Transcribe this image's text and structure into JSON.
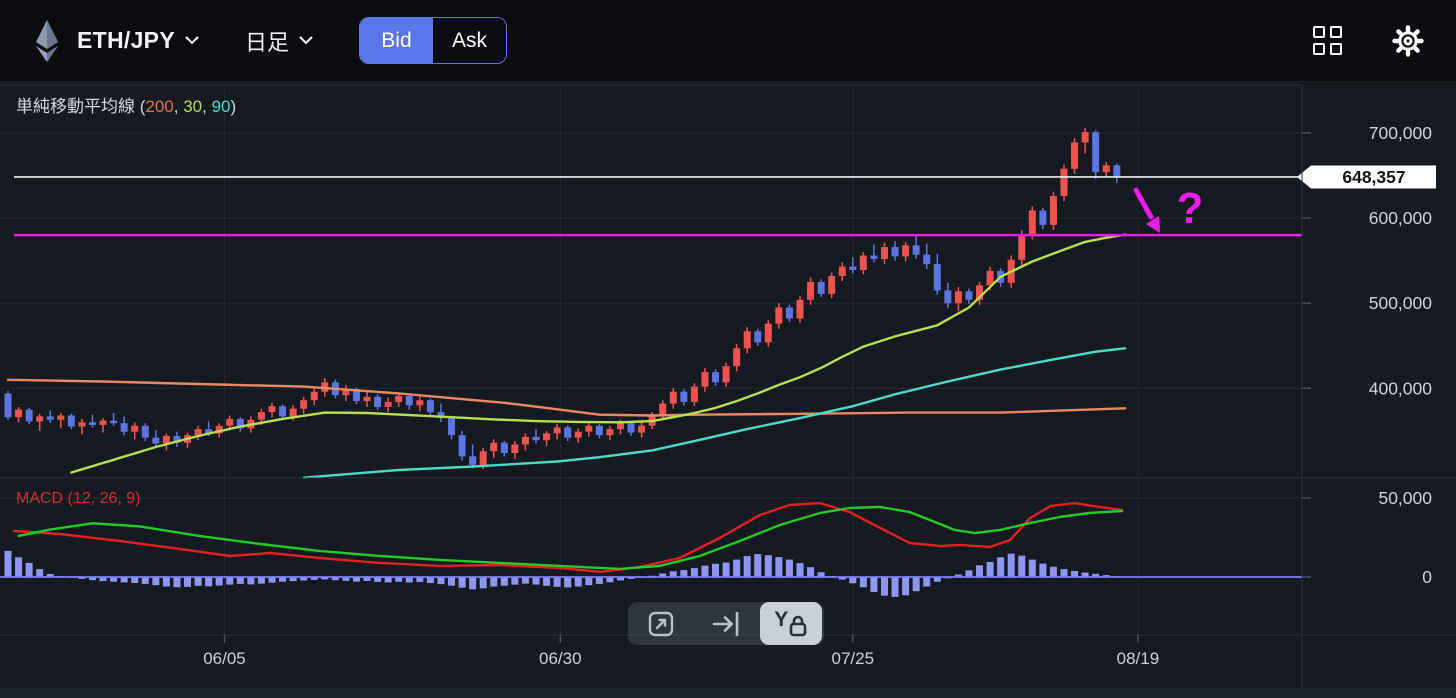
{
  "header": {
    "symbol": "ETH/JPY",
    "timeframe": "日足",
    "bid_label": "Bid",
    "ask_label": "Ask",
    "selected_side": "Bid"
  },
  "indicator": {
    "prefix": "単純移動平均線 (",
    "separator": ", ",
    "suffix": ")",
    "params": [
      {
        "value": "200",
        "color": "#e0734f"
      },
      {
        "value": "30",
        "color": "#b8de51"
      },
      {
        "value": "90",
        "color": "#4ed9c6"
      }
    ]
  },
  "macd_label": "MACD (12, 26, 9)",
  "price_tag": "648,357",
  "annotation": {
    "text": "?",
    "color": "#ea1dea"
  },
  "toolbar": {
    "buttons": [
      "expand",
      "go-to-latest",
      "y-axis-lock"
    ],
    "active": "y-axis-lock",
    "y_lock_letter": "Y"
  },
  "chart_data": {
    "type": "candlestick",
    "symbol": "ETH/JPY",
    "interval": "daily",
    "current_price": 648357,
    "level_line": {
      "price": 580000,
      "color": "#ea1dea"
    },
    "y_axis": {
      "ticks": [
        700000,
        600000,
        500000,
        400000
      ],
      "labels": [
        "700,000",
        "600,000",
        "500,000",
        "400,000"
      ]
    },
    "x_axis": {
      "ticks": [
        {
          "label": "06/05",
          "i": 20.5
        },
        {
          "label": "06/30",
          "i": 52.3
        },
        {
          "label": "07/25",
          "i": 80.0
        },
        {
          "label": "08/19",
          "i": 107.0
        }
      ]
    },
    "colors": {
      "up": "#ef5350",
      "down": "#5e74e0",
      "sma200": "#e88a63",
      "sma30": "#b8de51",
      "sma90": "#4ed9c6",
      "macd_line": "#e02222",
      "signal_line": "#26c926",
      "histogram": "#8f96f2",
      "zero_line": "#7d82f5",
      "level": "#ea1dea",
      "price_line": "#eceef2"
    },
    "candles": [
      [
        394000,
        397000,
        363000,
        366000
      ],
      [
        366000,
        378000,
        360000,
        375000
      ],
      [
        375000,
        377000,
        358000,
        361000
      ],
      [
        361000,
        370000,
        350000,
        367000
      ],
      [
        367000,
        374000,
        359000,
        363000
      ],
      [
        363000,
        371000,
        353000,
        368000
      ],
      [
        368000,
        370000,
        352000,
        355000
      ],
      [
        355000,
        364000,
        346000,
        360000
      ],
      [
        360000,
        369000,
        354000,
        357000
      ],
      [
        357000,
        365000,
        348000,
        362000
      ],
      [
        362000,
        371000,
        356000,
        359000
      ],
      [
        359000,
        367000,
        345000,
        349000
      ],
      [
        349000,
        360000,
        340000,
        356000
      ],
      [
        356000,
        359000,
        338000,
        342000
      ],
      [
        342000,
        351000,
        330000,
        335000
      ],
      [
        335000,
        347000,
        327000,
        344000
      ],
      [
        344000,
        349000,
        331000,
        336000
      ],
      [
        336000,
        348000,
        330000,
        345000
      ],
      [
        345000,
        356000,
        339000,
        352000
      ],
      [
        352000,
        361000,
        344000,
        347000
      ],
      [
        347000,
        359000,
        342000,
        356000
      ],
      [
        356000,
        368000,
        351000,
        364000
      ],
      [
        364000,
        366000,
        349000,
        353000
      ],
      [
        353000,
        367000,
        348000,
        363000
      ],
      [
        363000,
        376000,
        357000,
        372000
      ],
      [
        372000,
        383000,
        366000,
        379000
      ],
      [
        379000,
        381000,
        363000,
        367000
      ],
      [
        367000,
        380000,
        362000,
        376000
      ],
      [
        376000,
        390000,
        370000,
        386000
      ],
      [
        386000,
        400000,
        380000,
        396000
      ],
      [
        396000,
        412000,
        390000,
        407000
      ],
      [
        407000,
        410000,
        388000,
        392000
      ],
      [
        392000,
        404000,
        385000,
        399000
      ],
      [
        399000,
        401000,
        381000,
        385000
      ],
      [
        385000,
        396000,
        378000,
        390000
      ],
      [
        390000,
        393000,
        374000,
        378000
      ],
      [
        378000,
        389000,
        372000,
        384000
      ],
      [
        384000,
        395000,
        378000,
        391000
      ],
      [
        391000,
        393000,
        375000,
        380000
      ],
      [
        380000,
        390000,
        373000,
        386000
      ],
      [
        386000,
        388000,
        368000,
        372000
      ],
      [
        372000,
        382000,
        360000,
        365000
      ],
      [
        365000,
        368000,
        340000,
        345000
      ],
      [
        345000,
        350000,
        315000,
        320000
      ],
      [
        320000,
        334000,
        306000,
        310000
      ],
      [
        310000,
        330000,
        305000,
        326000
      ],
      [
        326000,
        340000,
        318000,
        336000
      ],
      [
        336000,
        338000,
        320000,
        324000
      ],
      [
        324000,
        338000,
        317000,
        334000
      ],
      [
        334000,
        347000,
        327000,
        343000
      ],
      [
        343000,
        352000,
        335000,
        339000
      ],
      [
        339000,
        350000,
        332000,
        347000
      ],
      [
        347000,
        358000,
        340000,
        354000
      ],
      [
        354000,
        356000,
        338000,
        342000
      ],
      [
        342000,
        353000,
        336000,
        349000
      ],
      [
        349000,
        360000,
        343000,
        356000
      ],
      [
        356000,
        358000,
        341000,
        345000
      ],
      [
        345000,
        356000,
        339000,
        352000
      ],
      [
        352000,
        363000,
        346000,
        359000
      ],
      [
        359000,
        361000,
        344000,
        348000
      ],
      [
        348000,
        360000,
        342000,
        356000
      ],
      [
        356000,
        372000,
        352000,
        368000
      ],
      [
        368000,
        386000,
        362000,
        382000
      ],
      [
        382000,
        400000,
        376000,
        396000
      ],
      [
        396000,
        399000,
        380000,
        384000
      ],
      [
        384000,
        406000,
        379000,
        402000
      ],
      [
        402000,
        424000,
        396000,
        419000
      ],
      [
        419000,
        422000,
        403000,
        407000
      ],
      [
        407000,
        430000,
        402000,
        426000
      ],
      [
        426000,
        452000,
        420000,
        447000
      ],
      [
        447000,
        472000,
        441000,
        467000
      ],
      [
        467000,
        470000,
        450000,
        454000
      ],
      [
        454000,
        480000,
        449000,
        476000
      ],
      [
        476000,
        500000,
        470000,
        495000
      ],
      [
        495000,
        498000,
        478000,
        482000
      ],
      [
        482000,
        508000,
        477000,
        504000
      ],
      [
        504000,
        530000,
        498000,
        525000
      ],
      [
        525000,
        528000,
        507000,
        511000
      ],
      [
        511000,
        536000,
        506000,
        532000
      ],
      [
        532000,
        548000,
        526000,
        543000
      ],
      [
        543000,
        554000,
        535000,
        539000
      ],
      [
        539000,
        560000,
        534000,
        556000
      ],
      [
        556000,
        569000,
        548000,
        552000
      ],
      [
        552000,
        571000,
        546000,
        566000
      ],
      [
        566000,
        573000,
        550000,
        555000
      ],
      [
        555000,
        572000,
        549000,
        568000
      ],
      [
        568000,
        580000,
        552000,
        557000
      ],
      [
        557000,
        570000,
        540000,
        546000
      ],
      [
        546000,
        558000,
        510000,
        515000
      ],
      [
        515000,
        524000,
        494000,
        500000
      ],
      [
        500000,
        519000,
        491000,
        514000
      ],
      [
        514000,
        517000,
        499000,
        504000
      ],
      [
        504000,
        525000,
        498000,
        521000
      ],
      [
        521000,
        543000,
        515000,
        538000
      ],
      [
        538000,
        541000,
        519000,
        524000
      ],
      [
        524000,
        556000,
        518000,
        551000
      ],
      [
        551000,
        586000,
        545000,
        581000
      ],
      [
        581000,
        614000,
        575000,
        609000
      ],
      [
        609000,
        612000,
        587000,
        592000
      ],
      [
        592000,
        631000,
        586000,
        626000
      ],
      [
        626000,
        663000,
        620000,
        658000
      ],
      [
        658000,
        694000,
        652000,
        689000
      ],
      [
        689000,
        706000,
        676000,
        701000
      ],
      [
        701000,
        703000,
        646000,
        654000
      ],
      [
        654000,
        666000,
        648000,
        662000
      ],
      [
        662000,
        664000,
        641000,
        648357
      ]
    ],
    "sma": {
      "200": [
        [
          0,
          410000
        ],
        [
          9,
          408000
        ],
        [
          18,
          405000
        ],
        [
          28,
          402000
        ],
        [
          37,
          394000
        ],
        [
          47,
          383000
        ],
        [
          51,
          377000
        ],
        [
          56,
          369000
        ],
        [
          61,
          368000
        ],
        [
          65,
          369000
        ],
        [
          75,
          370000
        ],
        [
          85,
          371500
        ],
        [
          94,
          371500
        ],
        [
          100,
          374000
        ],
        [
          105.8,
          376500
        ]
      ],
      "30": [
        [
          6,
          301000
        ],
        [
          10,
          316000
        ],
        [
          14,
          331000
        ],
        [
          18,
          344000
        ],
        [
          22,
          355000
        ],
        [
          26,
          364000
        ],
        [
          30,
          371500
        ],
        [
          34,
          371000
        ],
        [
          38,
          368500
        ],
        [
          42,
          366000
        ],
        [
          46,
          363500
        ],
        [
          50,
          361500
        ],
        [
          54,
          360500
        ],
        [
          58,
          360000
        ],
        [
          61,
          361500
        ],
        [
          63,
          366000
        ],
        [
          65,
          371000
        ],
        [
          67,
          377000
        ],
        [
          69,
          385000
        ],
        [
          71,
          394000
        ],
        [
          73,
          404000
        ],
        [
          75,
          413000
        ],
        [
          77,
          424000
        ],
        [
          79,
          437000
        ],
        [
          81,
          449000
        ],
        [
          84,
          461000
        ],
        [
          88,
          474000
        ],
        [
          91,
          495000
        ],
        [
          94,
          531000
        ],
        [
          97,
          549000
        ],
        [
          100,
          563000
        ],
        [
          102,
          572000
        ],
        [
          104,
          577000
        ],
        [
          105.8,
          580500
        ]
      ],
      "90": [
        [
          28,
          295000
        ],
        [
          37,
          304000
        ],
        [
          44,
          308000
        ],
        [
          52,
          314000
        ],
        [
          56,
          319000
        ],
        [
          61,
          327000
        ],
        [
          65,
          338000
        ],
        [
          70,
          352000
        ],
        [
          75,
          365000
        ],
        [
          80,
          379000
        ],
        [
          84,
          393000
        ],
        [
          89,
          408000
        ],
        [
          94,
          422000
        ],
        [
          99,
          434000
        ],
        [
          103,
          443000
        ],
        [
          105.8,
          447000
        ]
      ]
    },
    "macd": {
      "params": "12, 26, 9",
      "y_ticks": [
        50000,
        0
      ],
      "y_tick_labels": [
        "50,000",
        "0"
      ],
      "histogram": [
        16500,
        12500,
        8900,
        5000,
        1900,
        600,
        -500,
        -1200,
        -2000,
        -2600,
        -3000,
        -3400,
        -3800,
        -4400,
        -5200,
        -6000,
        -6500,
        -6200,
        -5600,
        -5900,
        -5400,
        -4800,
        -4400,
        -4700,
        -4200,
        -3600,
        -3000,
        -2600,
        -2200,
        -1800,
        -1500,
        -2000,
        -2400,
        -2900,
        -2500,
        -3100,
        -3400,
        -3000,
        -3500,
        -3200,
        -3800,
        -4500,
        -5500,
        -6800,
        -7800,
        -7200,
        -6000,
        -5500,
        -4800,
        -4200,
        -4800,
        -5600,
        -6200,
        -6600,
        -6000,
        -5200,
        -4400,
        -3400,
        -2200,
        -1200,
        -400,
        800,
        2200,
        3600,
        4400,
        5600,
        7200,
        8400,
        9200,
        11000,
        13200,
        14500,
        13800,
        12600,
        11000,
        8800,
        6200,
        3000,
        600,
        -1600,
        -4000,
        -6500,
        -9500,
        -11800,
        -12600,
        -11600,
        -9000,
        -6000,
        -3000,
        -800,
        1600,
        4200,
        7400,
        9500,
        12500,
        14800,
        13500,
        11000,
        8500,
        6500,
        5000,
        3800,
        2800,
        2000,
        1200,
        500
      ],
      "macd_line": [
        [
          0.6,
          29100
        ],
        [
          4.9,
          27200
        ],
        [
          10.6,
          22800
        ],
        [
          16.3,
          17700
        ],
        [
          21,
          13300
        ],
        [
          24.8,
          15200
        ],
        [
          29.5,
          12000
        ],
        [
          35.2,
          8900
        ],
        [
          40.9,
          7000
        ],
        [
          46.6,
          7600
        ],
        [
          52.3,
          5700
        ],
        [
          56.1,
          3200
        ],
        [
          59.8,
          6300
        ],
        [
          63.6,
          12000
        ],
        [
          67.4,
          24700
        ],
        [
          71.2,
          39200
        ],
        [
          74,
          45600
        ],
        [
          76.9,
          46800
        ],
        [
          79.7,
          41100
        ],
        [
          82.6,
          31000
        ],
        [
          85.4,
          21500
        ],
        [
          88.3,
          19600
        ],
        [
          90.2,
          20300
        ],
        [
          93,
          19000
        ],
        [
          94.9,
          23400
        ],
        [
          96.8,
          37300
        ],
        [
          98.7,
          44900
        ],
        [
          101,
          46800
        ],
        [
          103.4,
          44300
        ],
        [
          105.5,
          42400
        ]
      ],
      "signal_line": [
        [
          1,
          26000
        ],
        [
          4,
          30000
        ],
        [
          8,
          34000
        ],
        [
          12.5,
          32000
        ],
        [
          18.2,
          25900
        ],
        [
          23.9,
          20900
        ],
        [
          29.5,
          16500
        ],
        [
          35.2,
          13300
        ],
        [
          40.9,
          10800
        ],
        [
          46.6,
          8900
        ],
        [
          52.3,
          7000
        ],
        [
          58,
          5100
        ],
        [
          61.7,
          7000
        ],
        [
          65.5,
          13300
        ],
        [
          69.3,
          22800
        ],
        [
          73.1,
          32900
        ],
        [
          76.9,
          40500
        ],
        [
          79.7,
          43700
        ],
        [
          82.6,
          44300
        ],
        [
          85.4,
          41100
        ],
        [
          87.3,
          36100
        ],
        [
          89.7,
          29700
        ],
        [
          91.6,
          27800
        ],
        [
          93.9,
          29700
        ],
        [
          96.8,
          34200
        ],
        [
          99.6,
          38000
        ],
        [
          102.4,
          40500
        ],
        [
          105.5,
          41800
        ]
      ]
    }
  }
}
